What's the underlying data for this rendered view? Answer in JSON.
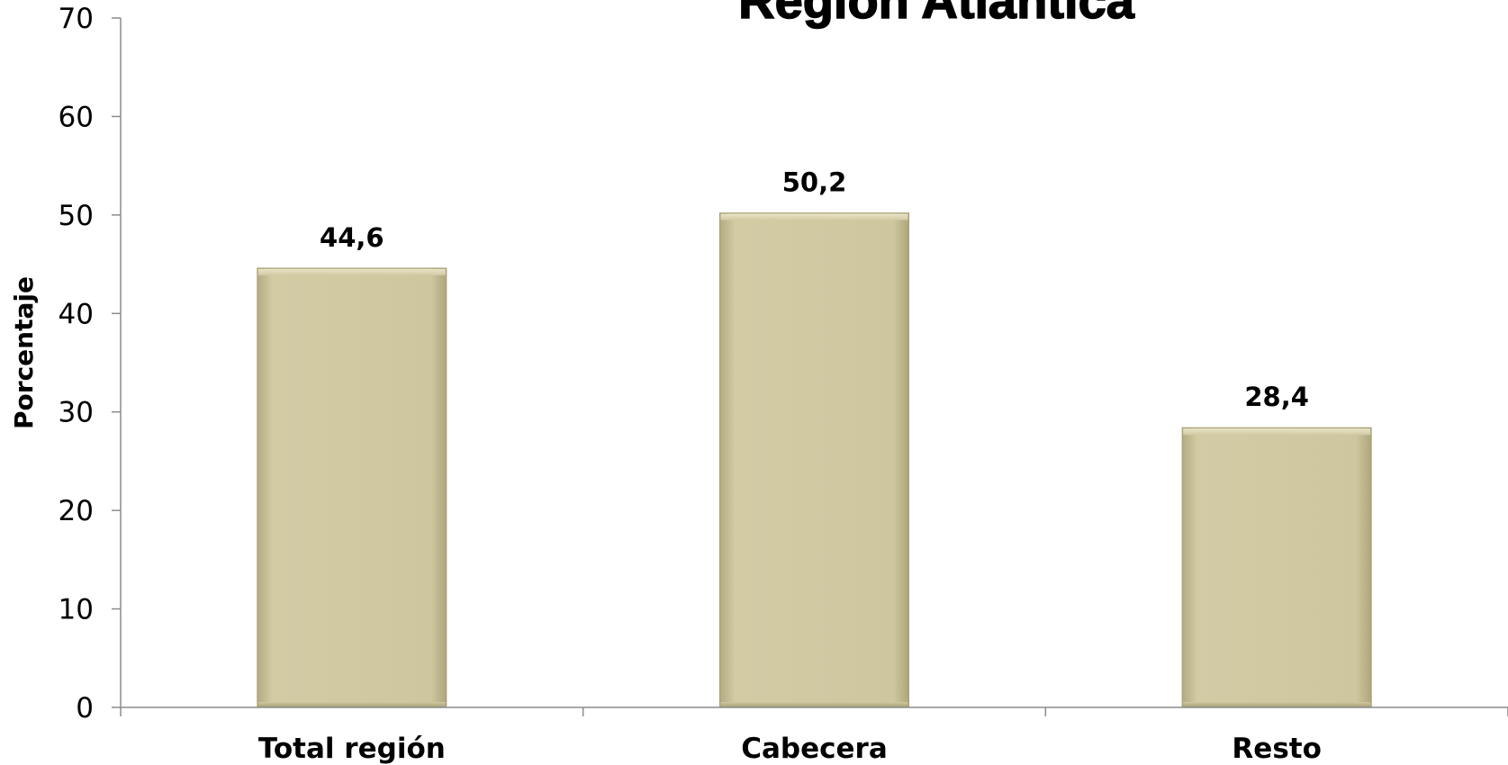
{
  "chart_data": {
    "type": "bar",
    "title": "Región Atlántica",
    "xlabel": "",
    "ylabel": "Porcentaje",
    "categories": [
      "Total región",
      "Cabecera",
      "Resto"
    ],
    "values": [
      44.6,
      50.2,
      28.4
    ],
    "data_labels": [
      "44,6",
      "50,2",
      "28,4"
    ],
    "ylim": [
      0,
      70
    ],
    "y_ticks": [
      0,
      10,
      20,
      30,
      40,
      50,
      60,
      70
    ],
    "y_tick_labels": [
      "0",
      "10",
      "20",
      "30",
      "40",
      "50",
      "60",
      "70"
    ],
    "grid": false,
    "legend": "none",
    "bar_color": "#cfc8a0",
    "bar_edge_color": "#a59e74",
    "axis_color": "#8c8c8c"
  }
}
